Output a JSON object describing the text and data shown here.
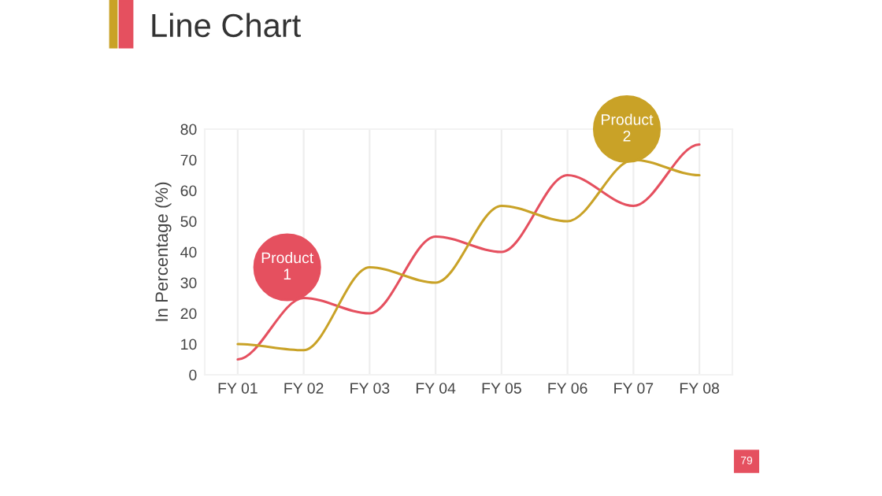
{
  "chart_data": {
    "type": "line",
    "title": "Line Chart",
    "ylabel": "In Percentage (%)",
    "categories": [
      "FY 01",
      "FY 02",
      "FY 03",
      "FY 04",
      "FY 05",
      "FY 06",
      "FY 07",
      "FY 08"
    ],
    "series": [
      {
        "name": "Product 1",
        "color": "#e5505f",
        "values": [
          5,
          25,
          20,
          45,
          40,
          65,
          55,
          75
        ]
      },
      {
        "name": "Product 2",
        "color": "#c9a227",
        "values": [
          10,
          8,
          35,
          30,
          55,
          50,
          70,
          65
        ]
      }
    ],
    "ylim": [
      0,
      80
    ],
    "yticks": [
      0,
      10,
      20,
      30,
      40,
      50,
      60,
      70,
      80
    ],
    "grid": "x",
    "legend": false,
    "marker": "none",
    "line_style": "solid",
    "annotations": [
      "79"
    ]
  }
}
